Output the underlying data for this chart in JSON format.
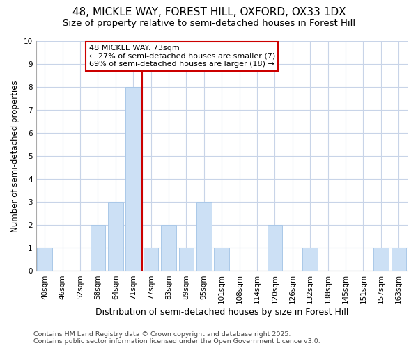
{
  "title1": "48, MICKLE WAY, FOREST HILL, OXFORD, OX33 1DX",
  "title2": "Size of property relative to semi-detached houses in Forest Hill",
  "xlabel": "Distribution of semi-detached houses by size in Forest Hill",
  "ylabel": "Number of semi-detached properties",
  "categories": [
    "40sqm",
    "46sqm",
    "52sqm",
    "58sqm",
    "64sqm",
    "71sqm",
    "77sqm",
    "83sqm",
    "89sqm",
    "95sqm",
    "101sqm",
    "108sqm",
    "114sqm",
    "120sqm",
    "126sqm",
    "132sqm",
    "138sqm",
    "145sqm",
    "151sqm",
    "157sqm",
    "163sqm"
  ],
  "values": [
    1,
    0,
    0,
    2,
    3,
    8,
    1,
    2,
    1,
    3,
    1,
    0,
    0,
    2,
    0,
    1,
    0,
    0,
    0,
    1,
    1
  ],
  "bar_color": "#cce0f5",
  "bar_edge_color": "#aac8e8",
  "vline_x": 5.5,
  "vline_color": "#cc0000",
  "annotation_title": "48 MICKLE WAY: 73sqm",
  "annotation_line1": "← 27% of semi-detached houses are smaller (7)",
  "annotation_line2": "69% of semi-detached houses are larger (18) →",
  "annotation_box_color": "#cc0000",
  "ylim": [
    0,
    10
  ],
  "yticks": [
    0,
    1,
    2,
    3,
    4,
    5,
    6,
    7,
    8,
    9,
    10
  ],
  "footer1": "Contains HM Land Registry data © Crown copyright and database right 2025.",
  "footer2": "Contains public sector information licensed under the Open Government Licence v3.0.",
  "bg_color": "#ffffff",
  "plot_bg_color": "#ffffff",
  "grid_color": "#c8d4e8",
  "title1_fontsize": 11,
  "title2_fontsize": 9.5,
  "xlabel_fontsize": 9,
  "ylabel_fontsize": 8.5,
  "tick_fontsize": 7.5,
  "footer_fontsize": 6.8,
  "ann_fontsize": 8
}
